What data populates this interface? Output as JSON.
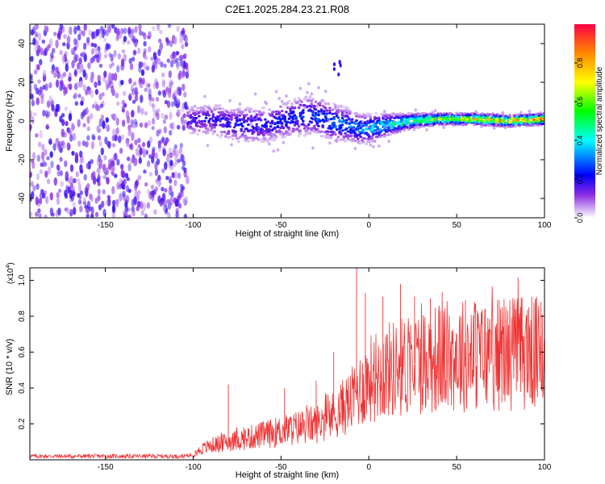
{
  "figure_title": "C2E1.2025.284.23.21.R08",
  "colors": {
    "snr_line": "#ee3333",
    "axis": "#000000",
    "colormap": [
      "#ffffff",
      "#6a00ff",
      "#0000ff",
      "#00ffff",
      "#00ff00",
      "#ffff00",
      "#ff8800",
      "#ff0000"
    ]
  },
  "chart_data": [
    {
      "type": "heatmap",
      "title": "",
      "xlabel": "Height of straight line (km)",
      "ylabel": "Frequency (Hz)",
      "xlim": [
        -193,
        100
      ],
      "ylim": [
        -50,
        50
      ],
      "xticks": [
        -150,
        -100,
        -50,
        0,
        50,
        100
      ],
      "yticks": [
        -40,
        -20,
        0,
        20,
        40
      ],
      "xtick_labels": [
        "-150",
        "-100",
        "-50",
        "0",
        "50",
        "100"
      ],
      "ytick_labels": [
        "-40",
        "-20",
        "0",
        "20",
        "40"
      ],
      "colorbar": {
        "label": "Normalized spectral amplitude",
        "range": [
          0,
          1
        ],
        "ticks": [
          0.0,
          0.2,
          0.4,
          0.6,
          0.8
        ],
        "tick_labels": [
          "0.0",
          "0.2",
          "0.4",
          "0.6",
          "0.8"
        ]
      },
      "noise_region": {
        "x_range": [
          -193,
          -103
        ],
        "amplitude": 0.15
      },
      "isolated_feature": {
        "x_range": [
          -20,
          -15
        ],
        "freq_range": [
          22,
          32
        ]
      },
      "ridge": {
        "description": "Doppler ridge centred near 0 Hz, amplitude increasing with height",
        "height_km": [
          -103,
          -90,
          -75,
          -60,
          -45,
          -35,
          -28,
          -20,
          -12,
          -5,
          0,
          10,
          25,
          40,
          60,
          80,
          100
        ],
        "center_hz": [
          0,
          1,
          -2,
          -2,
          1,
          3,
          2,
          -1,
          -2,
          -4,
          -4,
          -2,
          0,
          1,
          1,
          0,
          1
        ],
        "spread_hz": [
          8,
          9,
          10,
          10,
          10,
          11,
          10,
          10,
          9,
          8,
          8,
          6,
          4,
          3,
          3,
          3,
          3
        ],
        "peak_amplitude": [
          0.2,
          0.22,
          0.25,
          0.25,
          0.28,
          0.3,
          0.33,
          0.35,
          0.38,
          0.4,
          0.42,
          0.48,
          0.6,
          0.75,
          0.85,
          0.92,
          0.95
        ]
      }
    },
    {
      "type": "line",
      "title": "",
      "xlabel": "Height of straight line (km)",
      "ylabel": "SNR (10 * v/v)",
      "scale_label": "(x10",
      "scale_exponent": "4",
      "xlim": [
        -193,
        100
      ],
      "ylim": [
        0,
        1.07
      ],
      "xticks": [
        -150,
        -100,
        -50,
        0,
        50,
        100
      ],
      "yticks": [
        0.2,
        0.4,
        0.6,
        0.8,
        1.0
      ],
      "xtick_labels": [
        "-150",
        "-100",
        "-50",
        "0",
        "50",
        "100"
      ],
      "ytick_labels": [
        "0.2",
        "0.4",
        "0.6",
        "0.8",
        "1.0"
      ],
      "series": [
        {
          "name": "SNR",
          "envelope_x": [
            -193,
            -150,
            -105,
            -100,
            -95,
            -90,
            -80,
            -70,
            -60,
            -50,
            -40,
            -30,
            -20,
            -10,
            0,
            10,
            20,
            30,
            40,
            50,
            60,
            70,
            80,
            90,
            100
          ],
          "envelope_y": [
            0.02,
            0.02,
            0.02,
            0.03,
            0.06,
            0.08,
            0.1,
            0.12,
            0.14,
            0.16,
            0.18,
            0.2,
            0.25,
            0.33,
            0.45,
            0.5,
            0.52,
            0.55,
            0.57,
            0.58,
            0.59,
            0.58,
            0.6,
            0.6,
            0.58
          ],
          "spikes": [
            {
              "x": -7,
              "y": 1.07
            },
            {
              "x": -2,
              "y": 0.93
            },
            {
              "x": 8,
              "y": 0.91
            },
            {
              "x": 18,
              "y": 0.98
            },
            {
              "x": 26,
              "y": 0.91
            },
            {
              "x": 35,
              "y": 0.9
            },
            {
              "x": 55,
              "y": 0.89
            },
            {
              "x": 91,
              "y": 0.85
            },
            {
              "x": 98,
              "y": 0.88
            },
            {
              "x": -80,
              "y": 0.42
            },
            {
              "x": -48,
              "y": 0.4
            },
            {
              "x": -30,
              "y": 0.44
            },
            {
              "x": -20,
              "y": 0.6
            }
          ]
        }
      ]
    }
  ]
}
